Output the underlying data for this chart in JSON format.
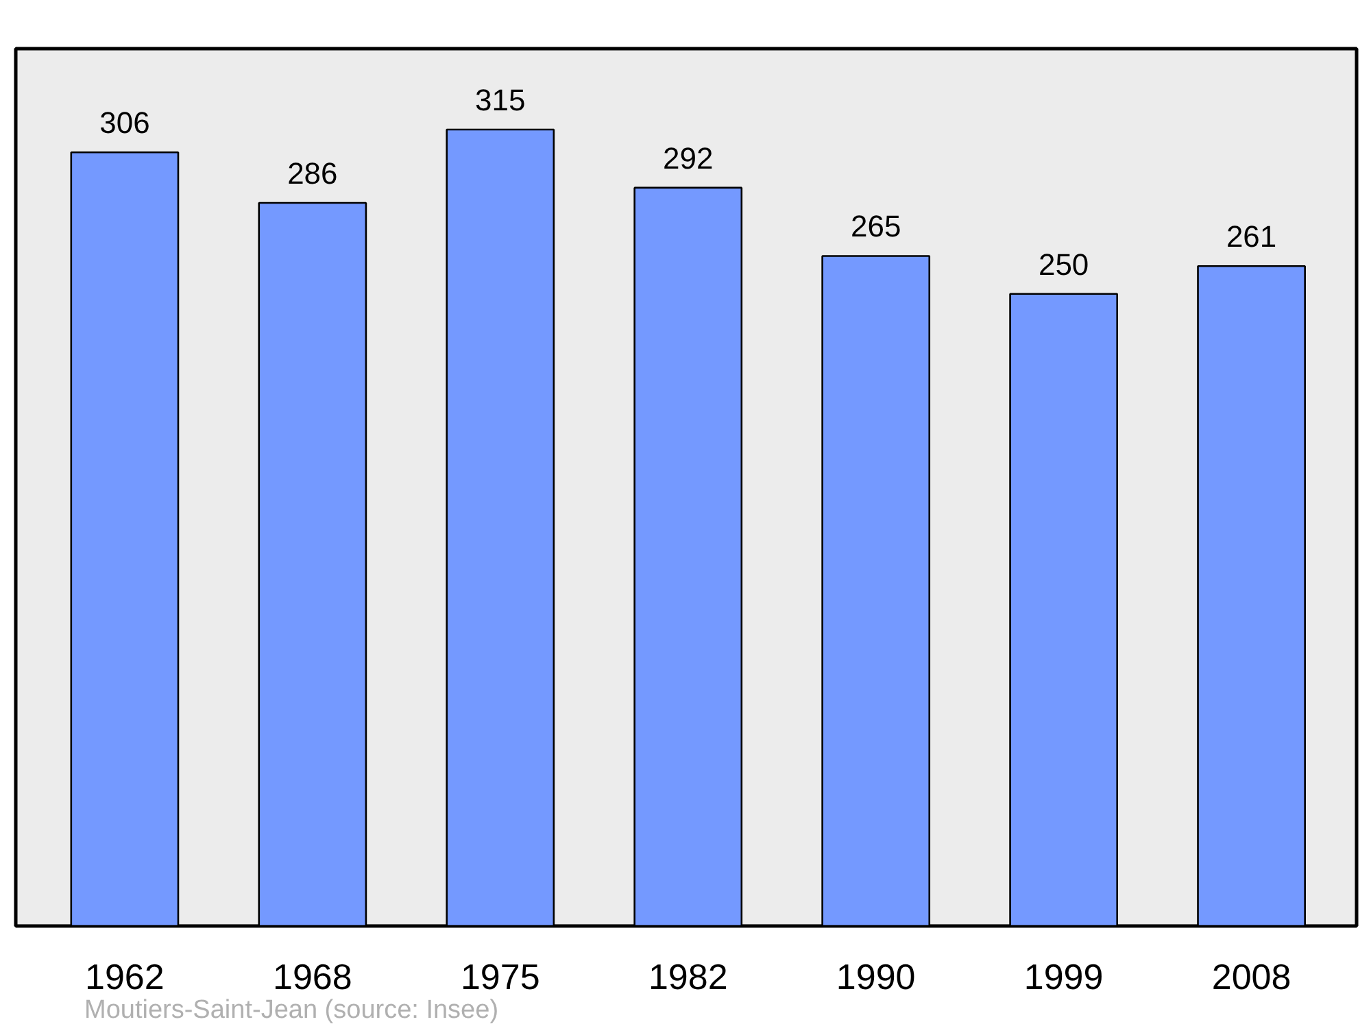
{
  "chart_data": {
    "type": "bar",
    "categories": [
      "1962",
      "1968",
      "1975",
      "1982",
      "1990",
      "1999",
      "2008"
    ],
    "values": [
      306,
      286,
      315,
      292,
      265,
      250,
      261
    ],
    "color": "#7499ff",
    "ylim": [
      0,
      347
    ],
    "data_labels": true,
    "tick_labels": "x",
    "grid": false,
    "annotations": [
      "Moutiers-Saint-Jean    (source: Insee)"
    ]
  }
}
